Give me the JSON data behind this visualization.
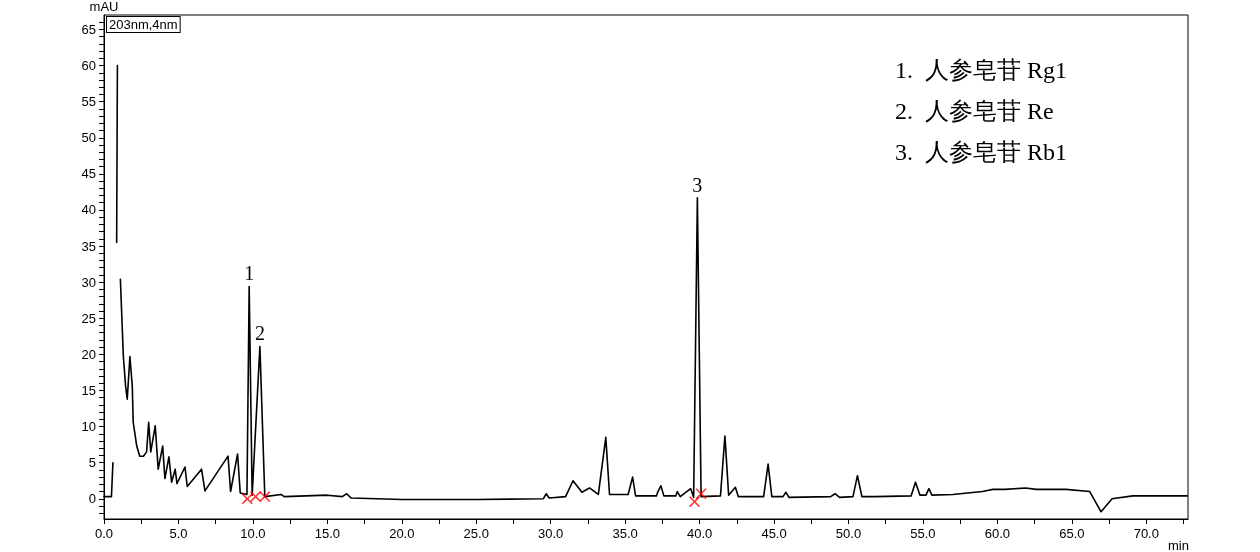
{
  "chart_data": {
    "type": "line",
    "xlabel": "min",
    "ylabel": "mAU",
    "xlim": [
      0,
      72.8
    ],
    "ylim": [
      -2.8,
      67
    ],
    "xticks": [
      {
        "value": 0,
        "label": "0.0"
      },
      {
        "value": 2.5,
        "label": null
      },
      {
        "value": 5,
        "label": "5.0"
      },
      {
        "value": 7.5,
        "label": null
      },
      {
        "value": 10,
        "label": "10.0"
      },
      {
        "value": 12.5,
        "label": null
      },
      {
        "value": 15,
        "label": "15.0"
      },
      {
        "value": 17.5,
        "label": null
      },
      {
        "value": 20,
        "label": "20.0"
      },
      {
        "value": 22.5,
        "label": null
      },
      {
        "value": 25,
        "label": "25.0"
      },
      {
        "value": 27.5,
        "label": null
      },
      {
        "value": 30,
        "label": "30.0"
      },
      {
        "value": 32.5,
        "label": null
      },
      {
        "value": 35,
        "label": "35.0"
      },
      {
        "value": 37.5,
        "label": null
      },
      {
        "value": 40,
        "label": "40.0"
      },
      {
        "value": 42.5,
        "label": null
      },
      {
        "value": 45,
        "label": "45.0"
      },
      {
        "value": 47.5,
        "label": null
      },
      {
        "value": 50,
        "label": "50.0"
      },
      {
        "value": 52.5,
        "label": null
      },
      {
        "value": 55,
        "label": "55.0"
      },
      {
        "value": 57.5,
        "label": null
      },
      {
        "value": 60,
        "label": "60.0"
      },
      {
        "value": 62.5,
        "label": null
      },
      {
        "value": 65,
        "label": "65.0"
      },
      {
        "value": 67.5,
        "label": null
      },
      {
        "value": 70,
        "label": "70.0"
      },
      {
        "value": 72.5,
        "label": null
      }
    ],
    "yticks": [
      {
        "value": -2,
        "label": null
      },
      {
        "value": -1,
        "label": null
      },
      0,
      {
        "value": 1,
        "label": null
      },
      {
        "value": 2,
        "label": null
      },
      {
        "value": 3,
        "label": null
      },
      {
        "value": 4,
        "label": null
      },
      5,
      {
        "value": 6,
        "label": null
      },
      {
        "value": 7,
        "label": null
      },
      {
        "value": 8,
        "label": null
      },
      {
        "value": 9,
        "label": null
      },
      10,
      {
        "value": 11,
        "label": null
      },
      {
        "value": 12,
        "label": null
      },
      {
        "value": 13,
        "label": null
      },
      {
        "value": 14,
        "label": null
      },
      15,
      {
        "value": 16,
        "label": null
      },
      {
        "value": 17,
        "label": null
      },
      {
        "value": 18,
        "label": null
      },
      {
        "value": 19,
        "label": null
      },
      20,
      {
        "value": 21,
        "label": null
      },
      {
        "value": 22,
        "label": null
      },
      {
        "value": 23,
        "label": null
      },
      {
        "value": 24,
        "label": null
      },
      25,
      {
        "value": 26,
        "label": null
      },
      {
        "value": 27,
        "label": null
      },
      {
        "value": 28,
        "label": null
      },
      {
        "value": 29,
        "label": null
      },
      30,
      {
        "value": 31,
        "label": null
      },
      {
        "value": 32,
        "label": null
      },
      {
        "value": 33,
        "label": null
      },
      {
        "value": 34,
        "label": null
      },
      35,
      {
        "value": 36,
        "label": null
      },
      {
        "value": 37,
        "label": null
      },
      {
        "value": 38,
        "label": null
      },
      {
        "value": 39,
        "label": null
      },
      40,
      {
        "value": 41,
        "label": null
      },
      {
        "value": 42,
        "label": null
      },
      {
        "value": 43,
        "label": null
      },
      {
        "value": 44,
        "label": null
      },
      45,
      {
        "value": 46,
        "label": null
      },
      {
        "value": 47,
        "label": null
      },
      {
        "value": 48,
        "label": null
      },
      {
        "value": 49,
        "label": null
      },
      50,
      {
        "value": 51,
        "label": null
      },
      {
        "value": 52,
        "label": null
      },
      {
        "value": 53,
        "label": null
      },
      {
        "value": 54,
        "label": null
      },
      55,
      {
        "value": 56,
        "label": null
      },
      {
        "value": 57,
        "label": null
      },
      {
        "value": 58,
        "label": null
      },
      {
        "value": 59,
        "label": null
      },
      60,
      {
        "value": 61,
        "label": null
      },
      {
        "value": 62,
        "label": null
      },
      {
        "value": 63,
        "label": null
      },
      {
        "value": 64,
        "label": null
      },
      65,
      {
        "value": 66,
        "label": null
      }
    ],
    "grid": false,
    "series": [
      {
        "color": "#000000",
        "marker": "none",
        "line_style": "solid",
        "x": [
          0,
          0.5,
          0.6,
          0.7,
          0.8,
          0.85,
          0.9,
          0.95,
          1.0,
          1.1,
          1.3,
          1.45,
          1.56,
          1.74,
          1.9,
          1.96,
          2.2,
          2.4,
          2.65,
          2.86,
          3.0,
          3.14,
          3.44,
          3.64,
          3.94,
          4.09,
          4.36,
          4.54,
          4.78,
          4.9,
          5.44,
          5.59,
          6.55,
          6.78,
          8.33,
          8.5,
          8.97,
          9.15,
          9.6,
          9.75,
          9.95,
          10.47,
          10.8,
          11.9,
          12.1,
          15,
          16.0,
          16.3,
          16.6,
          20,
          25,
          29.5,
          29.7,
          29.9,
          31.0,
          31.5,
          32.1,
          32.6,
          33.2,
          33.7,
          33.95,
          35.2,
          35.5,
          35.7,
          37.1,
          37.2,
          37.4,
          37.6,
          38.4,
          38.5,
          38.7,
          39.4,
          39.6,
          39.85,
          40.1,
          41.4,
          41.7,
          41.95,
          42.4,
          42.6,
          44.3,
          44.6,
          44.85,
          45.6,
          45.8,
          46.0,
          48.8,
          49.1,
          49.4,
          50.3,
          50.6,
          50.9,
          51.8,
          54.2,
          54.5,
          54.8,
          55.2,
          55.4,
          55.6,
          57.0,
          59.0,
          59.7,
          60.5,
          61.9,
          62.6,
          64.6,
          66.2,
          66.96,
          67.7,
          69.1,
          72.75
        ],
        "values": [
          0.3,
          0.3,
          5,
          null,
          null,
          35.5,
          60,
          null,
          null,
          30.4,
          19.7,
          15.6,
          13.8,
          19.7,
          15.6,
          10.6,
          7.3,
          5.9,
          5.9,
          6.5,
          10.6,
          6.5,
          10.1,
          4.1,
          7.3,
          2.8,
          5.8,
          2.3,
          4.1,
          2.1,
          4.4,
          1.7,
          4.1,
          1.1,
          5.9,
          1.0,
          6.2,
          0.8,
          0.6,
          29.4,
          0.5,
          21.1,
          0.3,
          0.6,
          0.3,
          0.5,
          0.3,
          0.7,
          0.1,
          -0.1,
          -0.1,
          0.0,
          0.7,
          0.1,
          0.3,
          2.5,
          0.9,
          1.5,
          0.6,
          8.5,
          0.6,
          0.6,
          3.0,
          0.4,
          0.4,
          1.0,
          1.8,
          0.4,
          0.4,
          1.0,
          0.3,
          1.4,
          0.2,
          41.7,
          0.3,
          0.4,
          8.7,
          0.5,
          1.6,
          0.3,
          0.3,
          4.8,
          0.3,
          0.3,
          0.9,
          0.2,
          0.3,
          0.7,
          0.2,
          0.3,
          3.2,
          0.3,
          0.3,
          0.4,
          2.3,
          0.5,
          0.5,
          1.4,
          0.5,
          0.6,
          1.0,
          1.3,
          1.3,
          1.5,
          1.3,
          1.3,
          1.0,
          -1.8,
          0.0,
          0.4,
          0.4
        ]
      },
      {
        "type": "scatter",
        "color": "#ff0000",
        "marker": "cross",
        "x": [
          9.62,
          10.18,
          10.8,
          39.66,
          40.1
        ],
        "values": [
          0,
          0.3,
          0.3,
          -0.4,
          0.7
        ]
      }
    ],
    "annotations": [
      "203nm,4nm",
      "1.  人参皂苷 Rg1",
      "2.  人参皂苷 Re",
      "3.  人参皂苷 Rb1",
      {
        "text": "1",
        "x": 9.75,
        "y": 29.4
      },
      {
        "text": "2",
        "x": 10.47,
        "y": 21.1
      },
      {
        "text": "3",
        "x": 39.85,
        "y": 41.7
      }
    ]
  }
}
